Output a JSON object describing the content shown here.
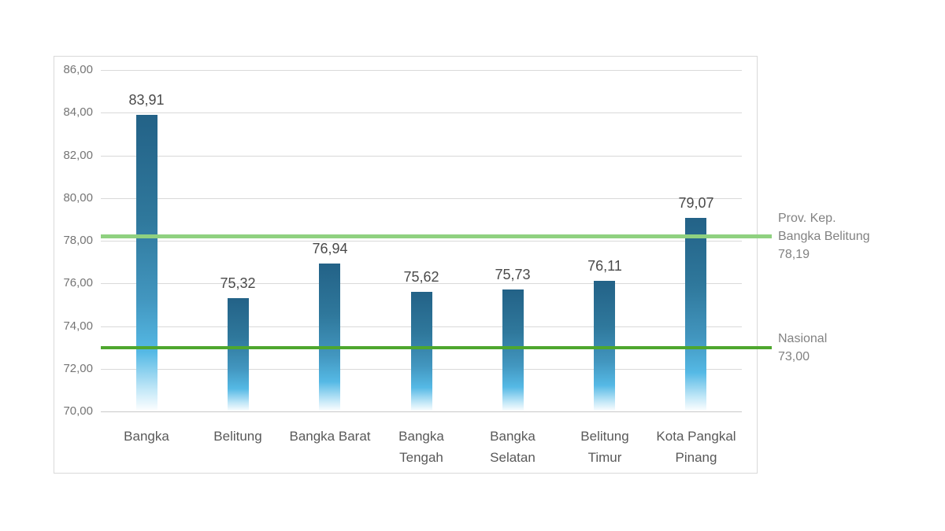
{
  "page": {
    "background_color": "#ffffff"
  },
  "chart_data": {
    "type": "bar",
    "title": "",
    "xlabel": "",
    "ylabel": "",
    "categories": [
      "Bangka",
      "Belitung",
      "Bangka Barat",
      "Bangka Tengah",
      "Bangka Selatan",
      "Belitung Timur",
      "Kota Pangkal Pinang"
    ],
    "category_display_lines": [
      [
        "Bangka"
      ],
      [
        "Belitung"
      ],
      [
        "Bangka Barat"
      ],
      [
        "Bangka",
        "Tengah"
      ],
      [
        "Bangka",
        "Selatan"
      ],
      [
        "Belitung",
        "Timur"
      ],
      [
        "Kota Pangkal",
        "Pinang"
      ]
    ],
    "values": [
      83.91,
      75.32,
      76.94,
      75.62,
      75.73,
      76.11,
      79.07
    ],
    "value_labels": [
      "83,91",
      "75,32",
      "76,94",
      "75,62",
      "75,73",
      "76,11",
      "79,07"
    ],
    "ylim": [
      70,
      86
    ],
    "ytick_step": 2,
    "ytick_values": [
      70,
      72,
      74,
      76,
      78,
      80,
      82,
      84,
      86
    ],
    "ytick_labels": [
      "70,00",
      "72,00",
      "74,00",
      "76,00",
      "78,00",
      "80,00",
      "82,00",
      "84,00",
      "86,00"
    ],
    "grid": true,
    "legend": "none",
    "reference_lines": [
      {
        "id": "provinsi",
        "value": 78.19,
        "color": "#8FD180",
        "thickness": 5,
        "label_lines": [
          "Prov. Kep.",
          "Bangka Belitung",
          "78,19"
        ]
      },
      {
        "id": "nasional",
        "value": 73.0,
        "color": "#4EA72E",
        "thickness": 4,
        "label_lines": [
          "Nasional",
          "73,00"
        ]
      }
    ],
    "bar_gradient_stops": [
      {
        "pos": 0,
        "color": "#236287"
      },
      {
        "pos": 0.35,
        "color": "#2F789C"
      },
      {
        "pos": 0.62,
        "color": "#4296BF"
      },
      {
        "pos": 0.8,
        "color": "#55B9E5"
      },
      {
        "pos": 0.93,
        "color": "#C6E9F8"
      },
      {
        "pos": 1,
        "color": "#FFFFFF"
      }
    ],
    "colors": {
      "grid": "#D9D9D9",
      "axis_baseline": "#C9C9C9",
      "tick_label": "#757575",
      "category_label": "#595959",
      "value_label": "#4a4a4a",
      "ref_label": "#828282",
      "frame_border": "#D9D9D9"
    }
  }
}
